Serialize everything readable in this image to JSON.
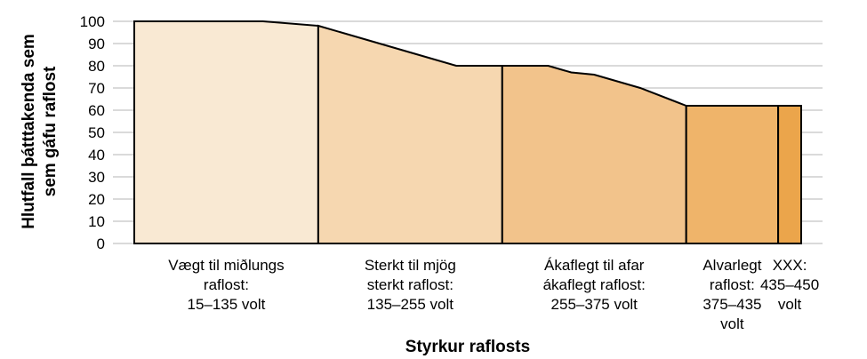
{
  "chart_data": {
    "type": "area",
    "title": "",
    "ylabel_lines": [
      "Hlutfall þátttakenda sem",
      "sem gáfu raflost"
    ],
    "xlabel": "Styrkur raflosts",
    "ylim": [
      0,
      100
    ],
    "yticks": [
      0,
      10,
      20,
      30,
      40,
      50,
      60,
      70,
      80,
      90,
      100
    ],
    "grid": true,
    "xlim": [
      15,
      450
    ],
    "x": [
      15,
      90,
      99,
      135,
      165,
      195,
      225,
      255,
      285,
      300,
      315,
      345,
      375,
      405,
      435,
      450
    ],
    "y": [
      100,
      100,
      100,
      98,
      92,
      86,
      80,
      80,
      80,
      77,
      76,
      70,
      62,
      62,
      62,
      62
    ],
    "bands": [
      {
        "label_lines": [
          "Vægt til miðlungs",
          "raflost:",
          "15–135 volt"
        ],
        "x0": 15,
        "x1": 135,
        "color": "#f9e9d3"
      },
      {
        "label_lines": [
          "Sterkt til mjög",
          "sterkt raflost:",
          "135–255 volt"
        ],
        "x0": 135,
        "x1": 255,
        "color": "#f6d7b0"
      },
      {
        "label_lines": [
          "Ákaflegt til afar",
          "ákaflegt raflost:",
          "255–375 volt"
        ],
        "x0": 255,
        "x1": 375,
        "color": "#f2c38b"
      },
      {
        "label_lines": [
          "Alvarlegt",
          "raflost:",
          "375–435",
          "volt"
        ],
        "x0": 375,
        "x1": 435,
        "color": "#efb46a"
      },
      {
        "label_lines": [
          "XXX:",
          "435–450",
          "volt"
        ],
        "x0": 435,
        "x1": 450,
        "color": "#eba54b"
      }
    ]
  }
}
